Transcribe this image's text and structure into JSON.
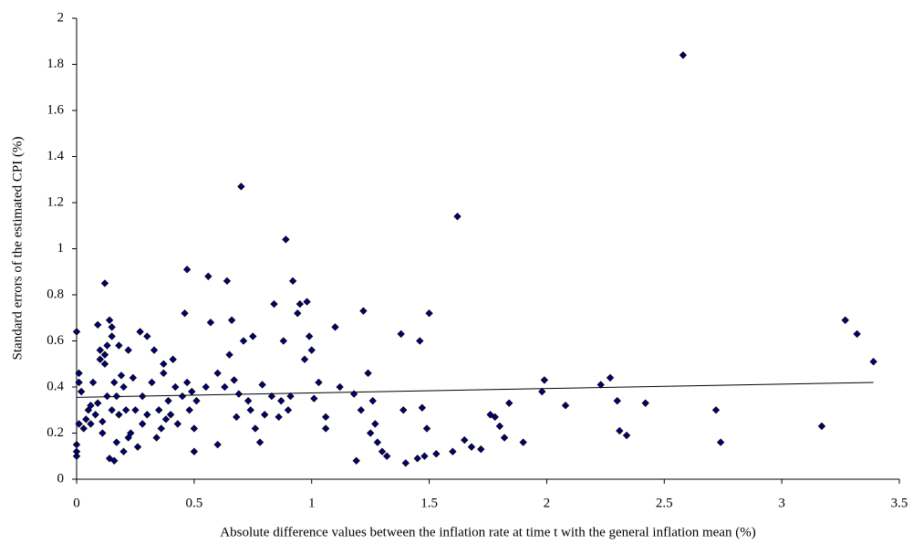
{
  "chart_data": {
    "type": "scatter",
    "xlabel": "Absolute difference values between the inflation rate at time t with the general inflation mean (%)",
    "ylabel": "Standard errors of the estimated CPI (%)",
    "xlim": [
      0,
      3.5
    ],
    "xticks": [
      0,
      0.5,
      1,
      1.5,
      2,
      2.5,
      3,
      3.5
    ],
    "ylim": [
      0,
      2
    ],
    "yticks": [
      0,
      0.2,
      0.4,
      0.6,
      0.8,
      1,
      1.2,
      1.4,
      1.6,
      1.8,
      2
    ],
    "color": "#000080",
    "x": [
      0,
      0,
      0,
      0,
      0.01,
      0.01,
      0.01,
      0.02,
      0.03,
      0.04,
      0.05,
      0.06,
      0.06,
      0.07,
      0.08,
      0.09,
      0.09,
      0.1,
      0.1,
      0.11,
      0.11,
      0.12,
      0.12,
      0.12,
      0.13,
      0.13,
      0.14,
      0.14,
      0.15,
      0.15,
      0.15,
      0.16,
      0.16,
      0.17,
      0.17,
      0.18,
      0.18,
      0.19,
      0.2,
      0.2,
      0.21,
      0.22,
      0.22,
      0.23,
      0.24,
      0.25,
      0.26,
      0.27,
      0.28,
      0.28,
      0.3,
      0.3,
      0.32,
      0.33,
      0.34,
      0.35,
      0.36,
      0.37,
      0.37,
      0.38,
      0.39,
      0.4,
      0.41,
      0.42,
      0.43,
      0.45,
      0.46,
      0.47,
      0.47,
      0.48,
      0.49,
      0.5,
      0.5,
      0.51,
      0.55,
      0.56,
      0.57,
      0.6,
      0.6,
      0.63,
      0.64,
      0.65,
      0.66,
      0.67,
      0.68,
      0.69,
      0.7,
      0.71,
      0.73,
      0.74,
      0.75,
      0.76,
      0.78,
      0.79,
      0.8,
      0.83,
      0.84,
      0.86,
      0.87,
      0.88,
      0.89,
      0.9,
      0.91,
      0.92,
      0.94,
      0.95,
      0.97,
      0.98,
      0.99,
      1,
      1.01,
      1.03,
      1.06,
      1.06,
      1.1,
      1.12,
      1.18,
      1.19,
      1.21,
      1.22,
      1.24,
      1.25,
      1.26,
      1.27,
      1.28,
      1.3,
      1.32,
      1.38,
      1.39,
      1.4,
      1.45,
      1.46,
      1.47,
      1.48,
      1.49,
      1.5,
      1.53,
      1.6,
      1.62,
      1.65,
      1.68,
      1.72,
      1.76,
      1.78,
      1.8,
      1.82,
      1.84,
      1.9,
      1.98,
      1.99,
      2.08,
      2.23,
      2.27,
      2.3,
      2.31,
      2.34,
      2.42,
      2.58,
      2.72,
      2.74,
      3.17,
      3.27,
      3.32,
      3.39
    ],
    "values": [
      0.64,
      0.1,
      0.12,
      0.15,
      0.24,
      0.42,
      0.46,
      0.38,
      0.22,
      0.26,
      0.3,
      0.32,
      0.24,
      0.42,
      0.28,
      0.67,
      0.33,
      0.52,
      0.56,
      0.25,
      0.2,
      0.54,
      0.5,
      0.85,
      0.58,
      0.36,
      0.09,
      0.69,
      0.66,
      0.62,
      0.3,
      0.08,
      0.42,
      0.16,
      0.36,
      0.28,
      0.58,
      0.45,
      0.4,
      0.12,
      0.3,
      0.56,
      0.18,
      0.2,
      0.44,
      0.3,
      0.14,
      0.64,
      0.36,
      0.24,
      0.62,
      0.28,
      0.42,
      0.56,
      0.18,
      0.3,
      0.22,
      0.46,
      0.5,
      0.26,
      0.34,
      0.28,
      0.52,
      0.4,
      0.24,
      0.36,
      0.72,
      0.91,
      0.42,
      0.3,
      0.38,
      0.22,
      0.12,
      0.34,
      0.4,
      0.88,
      0.68,
      0.15,
      0.46,
      0.4,
      0.86,
      0.54,
      0.69,
      0.43,
      0.27,
      0.37,
      1.27,
      0.6,
      0.34,
      0.3,
      0.62,
      0.22,
      0.16,
      0.41,
      0.28,
      0.36,
      0.76,
      0.27,
      0.34,
      0.6,
      1.04,
      0.3,
      0.36,
      0.86,
      0.72,
      0.76,
      0.52,
      0.77,
      0.62,
      0.56,
      0.35,
      0.42,
      0.27,
      0.22,
      0.66,
      0.4,
      0.37,
      0.08,
      0.3,
      0.73,
      0.46,
      0.2,
      0.34,
      0.24,
      0.16,
      0.12,
      0.1,
      0.63,
      0.3,
      0.07,
      0.09,
      0.6,
      0.31,
      0.1,
      0.22,
      0.72,
      0.11,
      0.12,
      1.14,
      0.17,
      0.14,
      0.13,
      0.28,
      0.27,
      0.23,
      0.18,
      0.33,
      0.16,
      0.38,
      0.43,
      0.32,
      0.41,
      0.44,
      0.34,
      0.21,
      0.19,
      0.33,
      1.84,
      0.3,
      0.16,
      0.23,
      0.69,
      0.63,
      0.51
    ],
    "trendline": {
      "x": [
        0,
        3.39
      ],
      "values": [
        0.355,
        0.42
      ]
    }
  }
}
